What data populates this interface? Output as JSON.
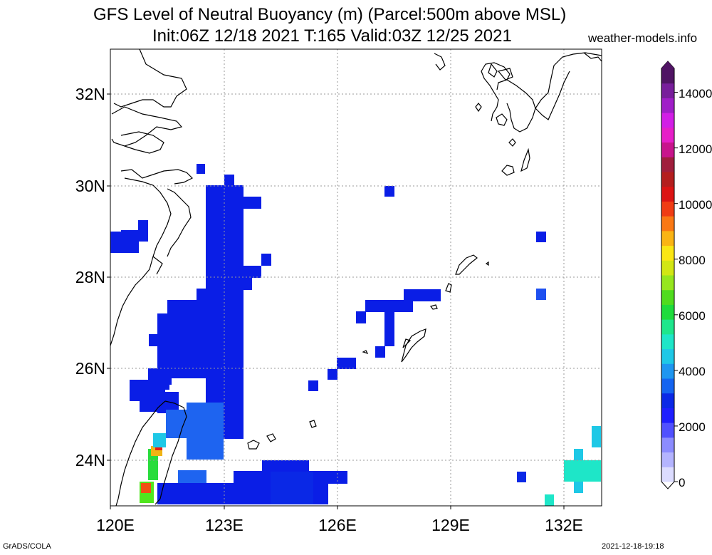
{
  "title_line1": "GFS Level of Neutral Buoyancy (m) (Parcel:500m above MSL)",
  "title_line2": "Init:06Z 12/18 2021 T:165 Valid:03Z 12/25 2021",
  "source": "weather-models.info",
  "footer_left": "GrADS/COLA",
  "footer_right": "2021-12-18-19:18",
  "map": {
    "lon_range": [
      120,
      133
    ],
    "lat_range": [
      23,
      33
    ],
    "lat_labels": [
      "32N",
      "30N",
      "28N",
      "26N",
      "24N"
    ],
    "lon_labels": [
      "120E",
      "123E",
      "126E",
      "129E",
      "132E"
    ],
    "grid": true
  },
  "colorbar": {
    "labels": [
      "14000",
      "12000",
      "10000",
      "8000",
      "6000",
      "4000",
      "2000",
      "0"
    ],
    "colors": [
      "#dcdcff",
      "#b4b4ff",
      "#8c8cff",
      "#5050ff",
      "#1e1eff",
      "#0a28e6",
      "#1464f0",
      "#1e96f0",
      "#1ec8e6",
      "#1ee6c8",
      "#1ee68c",
      "#1edc3c",
      "#50dc1e",
      "#96e61e",
      "#d2e614",
      "#fae614",
      "#fab414",
      "#fa7814",
      "#f03c14",
      "#dc1414",
      "#b41e1e",
      "#a01e3c",
      "#c8148c",
      "#e61ec8",
      "#d21ee6",
      "#a01ec8",
      "#781e9b",
      "#501464"
    ]
  }
}
